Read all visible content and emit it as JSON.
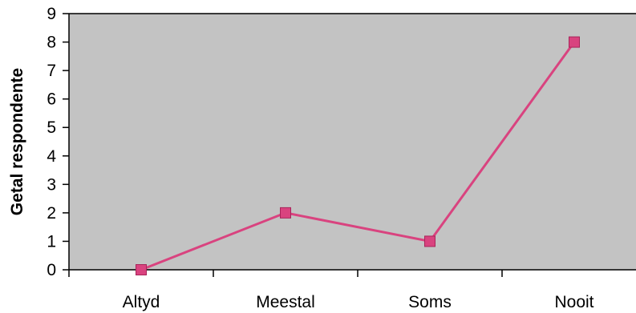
{
  "chart_data": {
    "type": "line",
    "title": "",
    "xlabel": "",
    "ylabel": "Getal respondente",
    "categories": [
      "Altyd",
      "Meestal",
      "Soms",
      "Nooit"
    ],
    "series": [
      {
        "values": [
          0,
          2,
          1,
          8
        ]
      }
    ],
    "ylim": [
      0,
      9
    ],
    "yticks": [
      0,
      1,
      2,
      3,
      4,
      5,
      6,
      7,
      8,
      9
    ],
    "grid": true,
    "legend": "none",
    "marker": "square",
    "colors": {
      "line": "#d9437f",
      "marker": "#d9437f",
      "plot_background": "#c3c3c3",
      "axis": "#000000",
      "gridline": "#000000"
    }
  }
}
